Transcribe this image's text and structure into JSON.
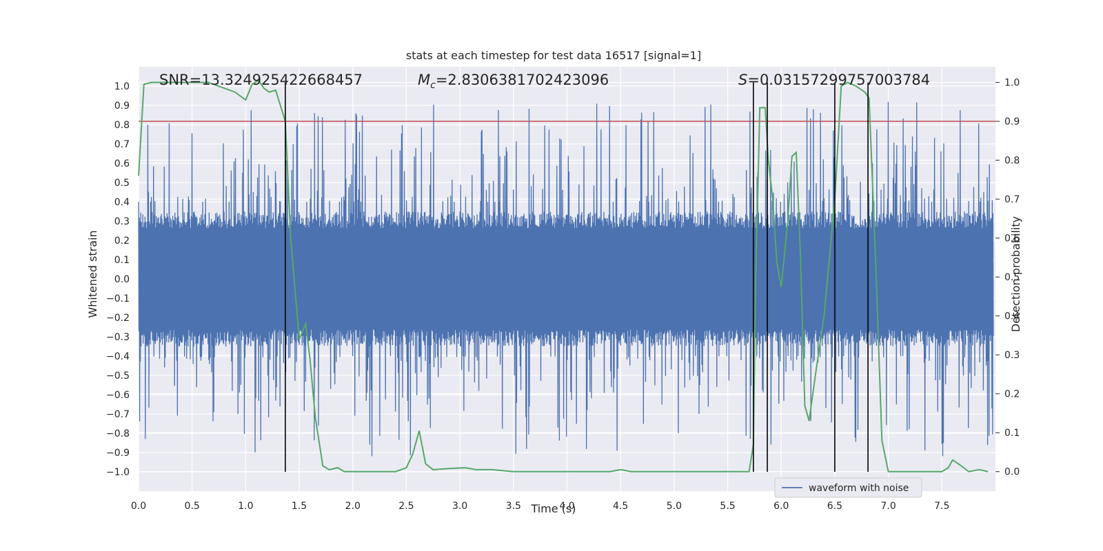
{
  "chart_data": {
    "type": "line",
    "title": "stats at each timestep for test data 16517 [signal=1]",
    "xlabel": "Time (s)",
    "ylabel": "Whitened strain",
    "y2label": "Detection probability",
    "xlim": [
      0.0,
      8.0
    ],
    "ylim": [
      -1.1,
      1.1
    ],
    "y2lim": [
      -0.05,
      1.04
    ],
    "x_ticks": [
      "0.0",
      "0.5",
      "1.0",
      "1.5",
      "2.0",
      "2.5",
      "3.0",
      "3.5",
      "4.0",
      "4.5",
      "5.0",
      "5.5",
      "6.0",
      "6.5",
      "7.0",
      "7.5"
    ],
    "y_ticks": [
      "1.0",
      "0.9",
      "0.8",
      "0.7",
      "0.6",
      "0.5",
      "0.4",
      "0.3",
      "0.2",
      "0.1",
      "0.0",
      "−0.1",
      "−0.2",
      "−0.3",
      "−0.4",
      "−0.5",
      "−0.6",
      "−0.7",
      "−0.8",
      "−0.9",
      "−1.0"
    ],
    "y2_ticks": [
      "1.0",
      "0.9",
      "0.8",
      "0.7",
      "0.6",
      "0.5",
      "0.4",
      "0.3",
      "0.2",
      "0.1",
      "0.0"
    ],
    "grid": true,
    "legend_position": "lower-right",
    "annotations": {
      "snr": "SNR=13.324925422668457",
      "mc_symbol": "M",
      "mc_sub": "c",
      "mc_value": "=2.8306381702423096",
      "s_symbol": "S",
      "s_value": "=0.03157299757003784"
    },
    "series": [
      {
        "name": "waveform with noise",
        "axis": "left",
        "color": "#4c72b0",
        "envelope_amplitude": 0.35,
        "spike_range": [
          0.4,
          0.92
        ],
        "x_range": [
          0.0,
          7.98
        ]
      },
      {
        "axis": "right",
        "color": "#55a868",
        "x": [
          0.0,
          0.05,
          0.12,
          0.3,
          0.5,
          0.65,
          0.8,
          0.9,
          1.0,
          1.06,
          1.12,
          1.17,
          1.22,
          1.28,
          1.37,
          1.42,
          1.5,
          1.56,
          1.6,
          1.65,
          1.72,
          1.78,
          1.86,
          1.92,
          2.0,
          2.2,
          2.4,
          2.5,
          2.56,
          2.62,
          2.68,
          2.75,
          2.9,
          3.05,
          3.15,
          3.3,
          3.5,
          4.0,
          4.4,
          4.5,
          4.6,
          5.0,
          5.6,
          5.7,
          5.74,
          5.76,
          5.8,
          5.85,
          5.88,
          5.92,
          5.96,
          6.0,
          6.06,
          6.1,
          6.14,
          6.18,
          6.22,
          6.26,
          6.32,
          6.4,
          6.5,
          6.56,
          6.62,
          6.7,
          6.78,
          6.82,
          6.88,
          6.94,
          7.0,
          7.2,
          7.5,
          7.56,
          7.6,
          7.68,
          7.75,
          7.85,
          7.93
        ],
        "values": [
          0.76,
          0.995,
          1.0,
          1.0,
          1.0,
          1.0,
          0.985,
          0.975,
          0.955,
          0.995,
          1.005,
          0.985,
          0.975,
          0.98,
          0.9,
          0.6,
          0.34,
          0.38,
          0.29,
          0.14,
          0.015,
          0.005,
          0.01,
          0.0,
          0.0,
          0.0,
          0.0,
          0.01,
          0.045,
          0.105,
          0.02,
          0.005,
          0.008,
          0.01,
          0.005,
          0.005,
          0.0,
          0.0,
          0.0,
          0.005,
          0.0,
          0.0,
          0.0,
          0.0,
          0.07,
          0.47,
          0.935,
          0.935,
          0.8,
          0.7,
          0.535,
          0.475,
          0.64,
          0.81,
          0.82,
          0.55,
          0.17,
          0.13,
          0.25,
          0.4,
          0.7,
          0.99,
          1.0,
          0.99,
          0.975,
          0.96,
          0.55,
          0.08,
          0.0,
          0.0,
          0.0,
          0.01,
          0.03,
          0.015,
          0.0,
          0.005,
          0.0
        ]
      }
    ],
    "threshold": {
      "axis": "right",
      "value": 0.9,
      "color": "#c44e52"
    },
    "vertical_lines": [
      1.37,
      5.74,
      5.87,
      6.5,
      6.81
    ],
    "legend": {
      "label": "waveform with noise"
    }
  }
}
